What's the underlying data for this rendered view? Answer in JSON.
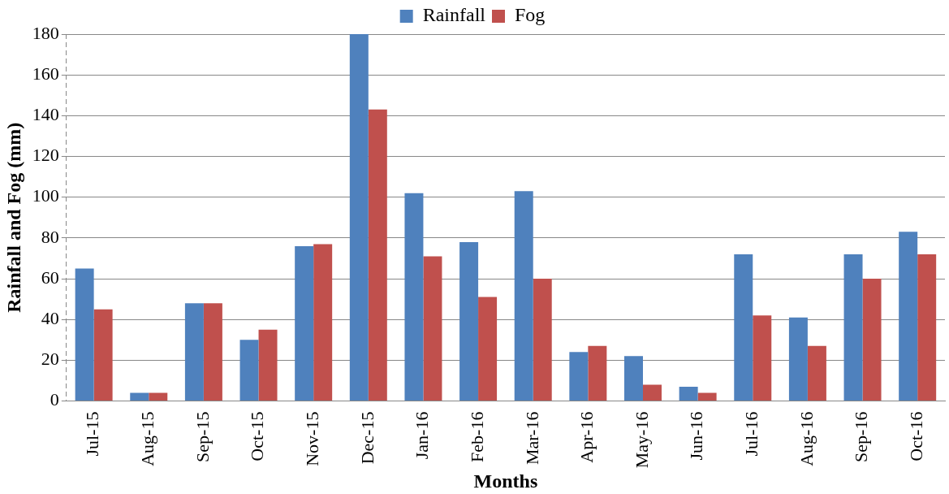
{
  "chart_data": {
    "type": "bar",
    "xlabel": "Months",
    "ylabel": "Rainfall and Fog (mm)",
    "categories": [
      "Jul-15",
      "Aug-15",
      "Sep-15",
      "Oct-15",
      "Nov-15",
      "Dec-15",
      "Jan-16",
      "Feb-16",
      "Mar-16",
      "Apr-16",
      "May-16",
      "Jun-16",
      "Jul-16",
      "Aug-16",
      "Sep-16",
      "Oct-16"
    ],
    "series": [
      {
        "name": "Rainfall",
        "color": "#4f81bd",
        "values": [
          65,
          4,
          48,
          30,
          76,
          180,
          102,
          78,
          103,
          24,
          22,
          7,
          72,
          41,
          72,
          83
        ]
      },
      {
        "name": "Fog",
        "color": "#c0504d",
        "values": [
          45,
          4,
          48,
          35,
          77,
          143,
          71,
          51,
          60,
          27,
          8,
          4,
          42,
          27,
          60,
          72
        ]
      }
    ],
    "ylim": [
      0,
      180
    ],
    "yticks": [
      0,
      20,
      40,
      60,
      80,
      100,
      120,
      140,
      160,
      180
    ],
    "grid": "y",
    "legend": "top"
  }
}
